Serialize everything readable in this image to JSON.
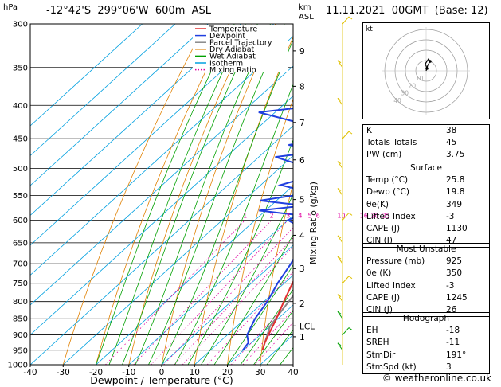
{
  "header": {
    "hpa_label": "hPa",
    "location": "-12°42'S  299°06'W  600m  ASL",
    "km_label": "km",
    "asl_label": "ASL",
    "datetime": "11.11.2021  00GMT  (Base: 12)"
  },
  "legend": [
    {
      "name": "Temperature",
      "color": "#e03030"
    },
    {
      "name": "Dewpoint",
      "color": "#2040e0"
    },
    {
      "name": "Parcel Trajectory",
      "color": "#888888"
    },
    {
      "name": "Dry Adiabat",
      "color": "#e08000"
    },
    {
      "name": "Wet Adiabat",
      "color": "#00a000"
    },
    {
      "name": "Isotherm",
      "color": "#00a0e0"
    },
    {
      "name": "Mixing Ratio",
      "color": "#e000a0"
    }
  ],
  "chart_data": {
    "type": "line",
    "xlabel": "Dewpoint / Temperature (°C)",
    "ylabel_right": "Mixing Ratio (g/kg)",
    "x_ticks": [
      -40,
      -30,
      -20,
      -10,
      0,
      10,
      20,
      30,
      40
    ],
    "pressure_ticks": [
      300,
      350,
      400,
      450,
      500,
      550,
      600,
      650,
      700,
      750,
      800,
      850,
      900,
      950,
      1000
    ],
    "km_ticks": [
      {
        "label": "9",
        "p": 330
      },
      {
        "label": "8",
        "p": 374
      },
      {
        "label": "7",
        "p": 425
      },
      {
        "label": "6",
        "p": 485
      },
      {
        "label": "5",
        "p": 558
      },
      {
        "label": "4",
        "p": 633
      },
      {
        "label": "3",
        "p": 712
      },
      {
        "label": "2",
        "p": 805
      },
      {
        "label": "LCL",
        "p": 872
      },
      {
        "label": "1",
        "p": 906
      }
    ],
    "mixing_ratio_labels": [
      "1",
      "2",
      "3",
      "4",
      "5",
      "6",
      "10",
      "16",
      "20",
      "25"
    ],
    "temperature": [
      {
        "p": 950,
        "t": 25.8
      },
      {
        "p": 925,
        "t": 24.0
      },
      {
        "p": 900,
        "t": 22.5
      },
      {
        "p": 850,
        "t": 19.5
      },
      {
        "p": 800,
        "t": 16.0
      },
      {
        "p": 750,
        "t": 12.5
      },
      {
        "p": 700,
        "t": 9.0
      },
      {
        "p": 650,
        "t": 5.5
      },
      {
        "p": 600,
        "t": 2.0
      },
      {
        "p": 550,
        "t": -2.5
      },
      {
        "p": 500,
        "t": -7.0
      },
      {
        "p": 450,
        "t": -12.0
      },
      {
        "p": 400,
        "t": -18.0
      },
      {
        "p": 350,
        "t": -25.5
      },
      {
        "p": 300,
        "t": -33.0
      }
    ],
    "dewpoint": [
      {
        "p": 950,
        "t": 19.8
      },
      {
        "p": 925,
        "t": 19.0
      },
      {
        "p": 900,
        "t": 16.0
      },
      {
        "p": 850,
        "t": 13.0
      },
      {
        "p": 800,
        "t": 11.0
      },
      {
        "p": 750,
        "t": 8.0
      },
      {
        "p": 700,
        "t": 5.5
      },
      {
        "p": 650,
        "t": 2.0
      },
      {
        "p": 620,
        "t": -2.0
      },
      {
        "p": 600,
        "t": -10.0
      },
      {
        "p": 590,
        "t": -8.0
      },
      {
        "p": 580,
        "t": -22.0
      },
      {
        "p": 570,
        "t": -10.0
      },
      {
        "p": 560,
        "t": -25.0
      },
      {
        "p": 545,
        "t": -12.0
      },
      {
        "p": 530,
        "t": -24.0
      },
      {
        "p": 515,
        "t": -18.0
      },
      {
        "p": 500,
        "t": -20.0
      },
      {
        "p": 480,
        "t": -35.0
      },
      {
        "p": 470,
        "t": -22.0
      },
      {
        "p": 460,
        "t": -35.0
      },
      {
        "p": 450,
        "t": -25.0
      },
      {
        "p": 440,
        "t": -25.0
      },
      {
        "p": 410,
        "t": -55.0
      },
      {
        "p": 395,
        "t": -30.0
      },
      {
        "p": 380,
        "t": -40.0
      },
      {
        "p": 350,
        "t": -55.0
      },
      {
        "p": 335,
        "t": -42.0
      },
      {
        "p": 320,
        "t": -43.0
      },
      {
        "p": 310,
        "t": -45.0
      },
      {
        "p": 300,
        "t": -50.0
      }
    ],
    "parcel": [
      {
        "p": 950,
        "t": 25.8
      },
      {
        "p": 872,
        "t": 20.0
      },
      {
        "p": 800,
        "t": 17.5
      },
      {
        "p": 700,
        "t": 13.5
      },
      {
        "p": 600,
        "t": 7.5
      },
      {
        "p": 500,
        "t": 0.5
      },
      {
        "p": 400,
        "t": -9.0
      },
      {
        "p": 350,
        "t": -15.5
      },
      {
        "p": 300,
        "t": -23.0
      }
    ],
    "wind_barbs_p": [
      300,
      350,
      400,
      450,
      500,
      550,
      600,
      650,
      700,
      750,
      800,
      850,
      900,
      950
    ]
  },
  "hodograph": {
    "unit": "kt",
    "ring_labels": [
      "10",
      "20",
      "30",
      "40"
    ]
  },
  "indices": {
    "rows": [
      {
        "label": "K",
        "value": "38"
      },
      {
        "label": "Totals Totals",
        "value": "45"
      },
      {
        "label": "PW (cm)",
        "value": "3.75"
      }
    ]
  },
  "surface": {
    "title": "Surface",
    "rows": [
      {
        "label": "Temp (°C)",
        "value": "25.8"
      },
      {
        "label": "Dewp (°C)",
        "value": "19.8"
      },
      {
        "label": "θe(K)",
        "value": "349"
      },
      {
        "label": "Lifted Index",
        "value": "-3"
      },
      {
        "label": "CAPE (J)",
        "value": "1130"
      },
      {
        "label": "CIN (J)",
        "value": "47"
      }
    ]
  },
  "most_unstable": {
    "title": "Most Unstable",
    "rows": [
      {
        "label": "Pressure (mb)",
        "value": "925"
      },
      {
        "label": "θe (K)",
        "value": "350"
      },
      {
        "label": "Lifted Index",
        "value": "-3"
      },
      {
        "label": "CAPE (J)",
        "value": "1245"
      },
      {
        "label": "CIN (J)",
        "value": "26"
      }
    ]
  },
  "hodograph_table": {
    "title": "Hodograph",
    "rows": [
      {
        "label": "EH",
        "value": "-18"
      },
      {
        "label": "SREH",
        "value": "-11"
      },
      {
        "label": "StmDir",
        "value": "191°"
      },
      {
        "label": "StmSpd (kt)",
        "value": "3"
      }
    ]
  },
  "footer": "© weatheronline.co.uk"
}
